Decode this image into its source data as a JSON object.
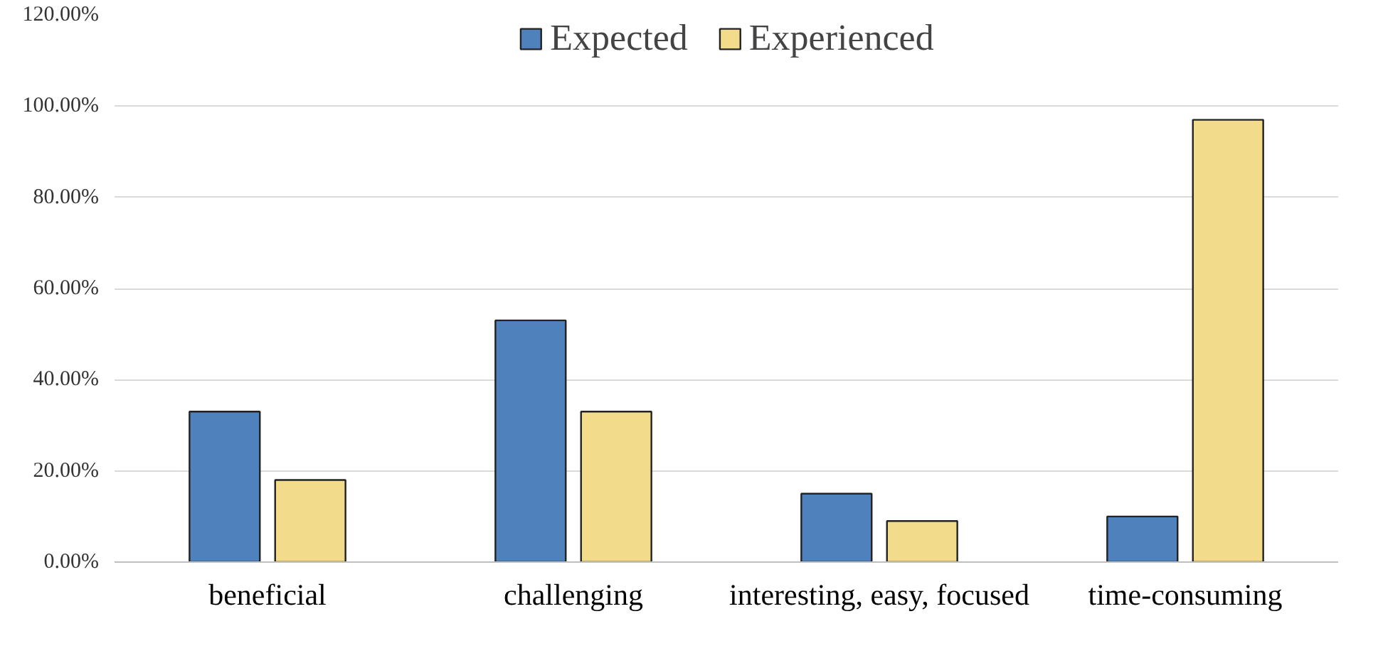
{
  "chart_data": {
    "type": "bar",
    "categories": [
      "beneficial",
      "challenging",
      "interesting, easy, focused",
      "time-consuming"
    ],
    "series": [
      {
        "name": "Expected",
        "color": "#4f81bd",
        "values": [
          33,
          53,
          15,
          10
        ]
      },
      {
        "name": "Experienced",
        "color": "#f2dc8c",
        "values": [
          18,
          33,
          9,
          97
        ]
      }
    ],
    "ylim": [
      0,
      120
    ],
    "yticks": [
      {
        "value": 0,
        "label": "0.00%"
      },
      {
        "value": 20,
        "label": "20.00%"
      },
      {
        "value": 40,
        "label": "40.00%"
      },
      {
        "value": 60,
        "label": "60.00%"
      },
      {
        "value": 80,
        "label": "80.00%"
      },
      {
        "value": 100,
        "label": "100.00%"
      },
      {
        "value": 120,
        "label": "120.00%"
      }
    ],
    "grid": "y",
    "legend": "top"
  }
}
